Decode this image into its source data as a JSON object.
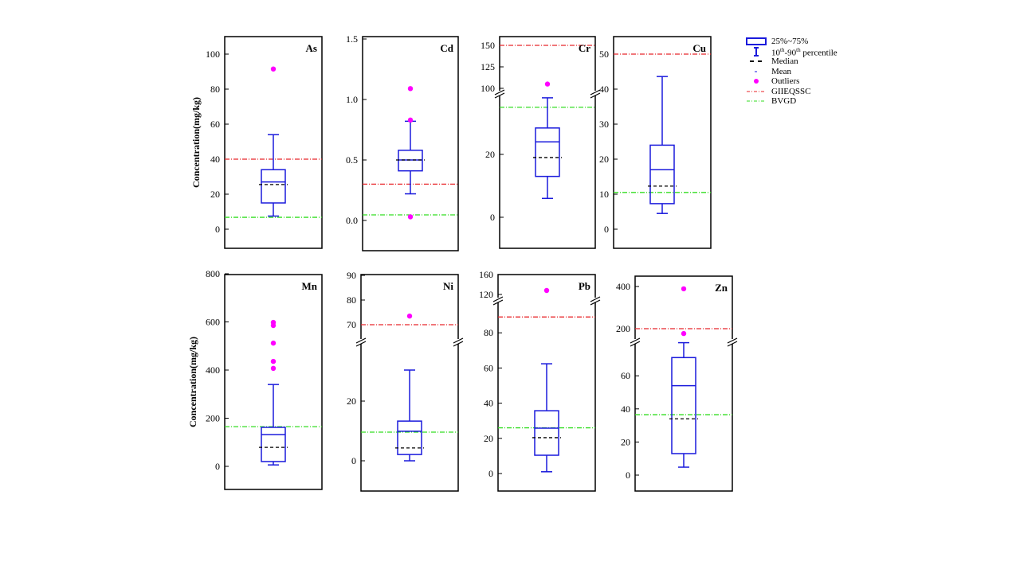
{
  "chart_data": {
    "type": "box",
    "ylabel": "Concentration(mg/kg)",
    "legend": {
      "placement": "top-right",
      "entries": {
        "box": "25%~75%",
        "whisker_a": "10",
        "whisker_sup1": "th",
        "whisker_b": "-90",
        "whisker_sup2": "th",
        "whisker_c": " percentile",
        "median": "Median",
        "mean": "Mean",
        "outliers": "Outliers",
        "giieqssc": "GIIEQSSC",
        "bvgd": "BVGD"
      }
    },
    "colors": {
      "box": "#1a1adc",
      "outlier": "#ff00ff",
      "giieqssc": "#e8262a",
      "bvgd": "#33dd22",
      "mean": "#000000"
    },
    "panels": [
      {
        "name": "As",
        "ticks": [
          "0",
          "20",
          "40",
          "60",
          "80",
          "100"
        ],
        "axis_segments": [
          [
            -10,
            110
          ]
        ],
        "p10": 7.5,
        "q1": 15,
        "median": 27,
        "q3": 34,
        "p90": 54,
        "mean": 25.5,
        "outliers": [
          91.5
        ],
        "giieqssc": 40,
        "bvgd": 6.8
      },
      {
        "name": "Cd",
        "ticks": [
          "0.0",
          "0.5",
          "1.0",
          "1.5"
        ],
        "axis_segments": [
          [
            -0.2,
            1.55
          ]
        ],
        "p10": 0.22,
        "q1": 0.41,
        "median": 0.5,
        "q3": 0.58,
        "p90": 0.82,
        "mean": 0.5,
        "outliers": [
          1.09,
          0.83,
          0.03
        ],
        "giieqssc": 0.3,
        "bvgd": 0.046
      },
      {
        "name": "Cr",
        "ticks": [
          "0",
          "20",
          "100",
          "125",
          "150"
        ],
        "axis_segments": [
          [
            -10,
            40
          ],
          [
            95,
            160
          ]
        ],
        "p10": 6,
        "q1": 13,
        "median": 24,
        "q3": 28.4,
        "p90": 38,
        "mean": 19,
        "outliers": [
          105
        ],
        "giieqssc": 150,
        "bvgd": 35
      },
      {
        "name": "Cu",
        "ticks": [
          "0",
          "10",
          "20",
          "30",
          "40",
          "50"
        ],
        "axis_segments": [
          [
            -5,
            55
          ]
        ],
        "p10": 4.5,
        "q1": 7.3,
        "median": 17,
        "q3": 24,
        "p90": 43.6,
        "mean": 12.3,
        "outliers": [],
        "giieqssc": 50,
        "bvgd": 10.5
      },
      {
        "name": "Mn",
        "ticks": [
          "0",
          "200",
          "400",
          "600",
          "800"
        ],
        "axis_segments": [
          [
            -100,
            810
          ]
        ],
        "p10": 6,
        "q1": 20,
        "median": 132,
        "q3": 162,
        "p90": 340,
        "mean": 79,
        "outliers": [
          598,
          585,
          512,
          436,
          407
        ],
        "giieqssc": null,
        "bvgd": 165
      },
      {
        "name": "Ni",
        "ticks": [
          "0",
          "20",
          "70",
          "80",
          "90"
        ],
        "axis_segments": [
          [
            -10,
            35
          ],
          [
            65,
            92
          ]
        ],
        "p10": 0,
        "q1": 2.1,
        "median": 9.9,
        "q3": 13.3,
        "p90": 30.4,
        "mean": 4.3,
        "outliers": [
          73.5
        ],
        "giieqssc": 70,
        "bvgd": 9.6
      },
      {
        "name": "Pb",
        "ticks": [
          "0",
          "20",
          "40",
          "60",
          "80",
          "120",
          "160"
        ],
        "axis_segments": [
          [
            -10,
            90
          ],
          [
            110,
            165
          ]
        ],
        "p10": 1,
        "q1": 10.4,
        "median": 25.8,
        "q3": 35.7,
        "p90": 62.4,
        "mean": 20.4,
        "outliers": [
          128
        ],
        "giieqssc": 89,
        "bvgd": 26
      },
      {
        "name": "Zn",
        "ticks": [
          "0",
          "20",
          "40",
          "60",
          "200",
          "400"
        ],
        "axis_segments": [
          [
            -10,
            82
          ],
          [
            150,
            420
          ]
        ],
        "p10": 4.8,
        "q1": 13,
        "median": 54,
        "q3": 71,
        "p90": 80,
        "mean": 34,
        "outliers": [
          389,
          177
        ],
        "giieqssc": 200,
        "bvgd": 36.5
      }
    ]
  }
}
